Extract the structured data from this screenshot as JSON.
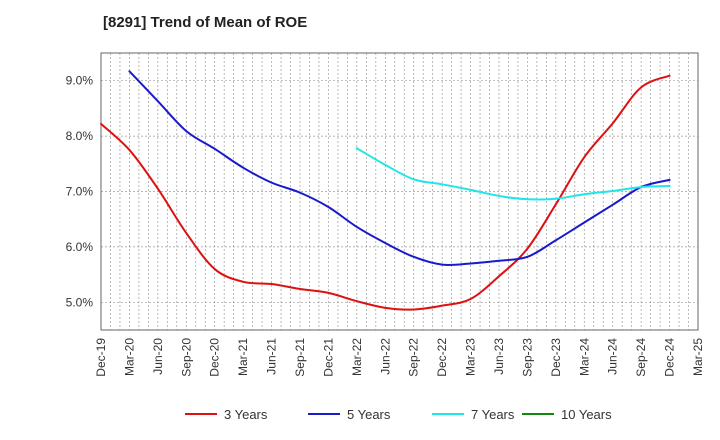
{
  "chart_data": {
    "type": "line",
    "title": "[8291]  Trend of Mean of ROE",
    "xlabel": "",
    "ylabel": "",
    "x_ticks": [
      "Dec-19",
      "Mar-20",
      "Jun-20",
      "Sep-20",
      "Dec-20",
      "Mar-21",
      "Jun-21",
      "Sep-21",
      "Dec-21",
      "Mar-22",
      "Jun-22",
      "Sep-22",
      "Dec-22",
      "Mar-23",
      "Jun-23",
      "Sep-23",
      "Dec-23",
      "Mar-24",
      "Jun-24",
      "Sep-24",
      "Dec-24",
      "Mar-25"
    ],
    "y_ticks": [
      5.0,
      6.0,
      7.0,
      8.0,
      9.0
    ],
    "y_tick_format": "percent_1dp",
    "ylim": [
      4.5,
      9.5
    ],
    "grid": true,
    "legend_position": "bottom",
    "series": [
      {
        "name": "3 Years",
        "color": "#dd1111",
        "x": [
          "Dec-19",
          "Mar-20",
          "Jun-20",
          "Sep-20",
          "Dec-20",
          "Mar-21",
          "Jun-21",
          "Sep-21",
          "Dec-21",
          "Mar-22",
          "Jun-22",
          "Sep-22",
          "Dec-22",
          "Mar-23",
          "Jun-23",
          "Sep-23",
          "Dec-23",
          "Mar-24",
          "Jun-24",
          "Sep-24",
          "Dec-24"
        ],
        "values": [
          8.22,
          7.75,
          7.05,
          6.25,
          5.6,
          5.37,
          5.33,
          5.24,
          5.17,
          5.02,
          4.9,
          4.87,
          4.94,
          5.06,
          5.47,
          5.97,
          6.77,
          7.62,
          8.23,
          8.88,
          9.09
        ]
      },
      {
        "name": "5 Years",
        "color": "#1a1acc",
        "x": [
          "Mar-20",
          "Jun-20",
          "Sep-20",
          "Dec-20",
          "Mar-21",
          "Jun-21",
          "Sep-21",
          "Dec-21",
          "Mar-22",
          "Jun-22",
          "Sep-22",
          "Dec-22",
          "Mar-23",
          "Jun-23",
          "Sep-23",
          "Dec-23",
          "Mar-24",
          "Jun-24",
          "Sep-24",
          "Dec-24"
        ],
        "values": [
          9.17,
          8.63,
          8.09,
          7.77,
          7.43,
          7.16,
          6.98,
          6.72,
          6.36,
          6.07,
          5.82,
          5.68,
          5.7,
          5.75,
          5.82,
          6.12,
          6.44,
          6.76,
          7.08,
          7.21
        ]
      },
      {
        "name": "7 Years",
        "color": "#22e5e5",
        "x": [
          "Mar-22",
          "Jun-22",
          "Sep-22",
          "Dec-22",
          "Mar-23",
          "Jun-23",
          "Sep-23",
          "Dec-23",
          "Mar-24",
          "Jun-24",
          "Sep-24",
          "Dec-24"
        ],
        "values": [
          7.78,
          7.48,
          7.22,
          7.13,
          7.03,
          6.92,
          6.86,
          6.87,
          6.95,
          7.01,
          7.08,
          7.1
        ]
      },
      {
        "name": "10 Years",
        "color": "#118811",
        "x": [],
        "values": []
      }
    ]
  }
}
